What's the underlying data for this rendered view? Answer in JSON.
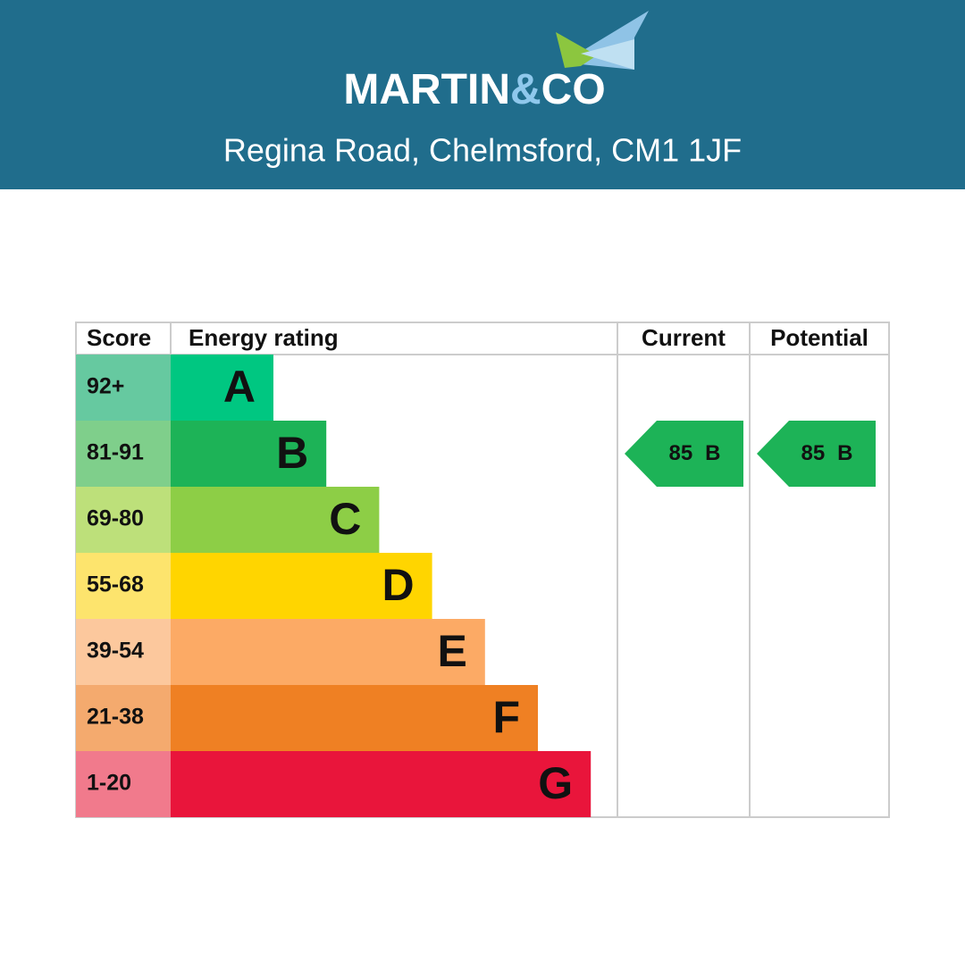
{
  "header": {
    "logo": [
      "MARTIN",
      "&",
      "CO"
    ],
    "address": "Regina Road, Chelmsford, CM1 1JF"
  },
  "table": {
    "columns": [
      "Score",
      "Energy rating",
      "Current",
      "Potential"
    ],
    "rows": [
      {
        "score": "92+",
        "rating": "A",
        "color": "#00c781",
        "score_color": "#66c9a0"
      },
      {
        "score": "81-91",
        "rating": "B",
        "color": "#1db357",
        "score_color": "#7fcf8b"
      },
      {
        "score": "69-80",
        "rating": "C",
        "color": "#8dce46",
        "score_color": "#bde07a"
      },
      {
        "score": "55-68",
        "rating": "D",
        "color": "#ffd500",
        "score_color": "#fde46d"
      },
      {
        "score": "39-54",
        "rating": "E",
        "color": "#fcaa65",
        "score_color": "#fcc89d"
      },
      {
        "score": "21-38",
        "rating": "F",
        "color": "#ef8023",
        "score_color": "#f4aa6e"
      },
      {
        "score": "1-20",
        "rating": "G",
        "color": "#e9153b",
        "score_color": "#f17a8c"
      }
    ],
    "current": {
      "score": 85,
      "band": "B"
    },
    "potential": {
      "score": 85,
      "band": "B"
    }
  }
}
